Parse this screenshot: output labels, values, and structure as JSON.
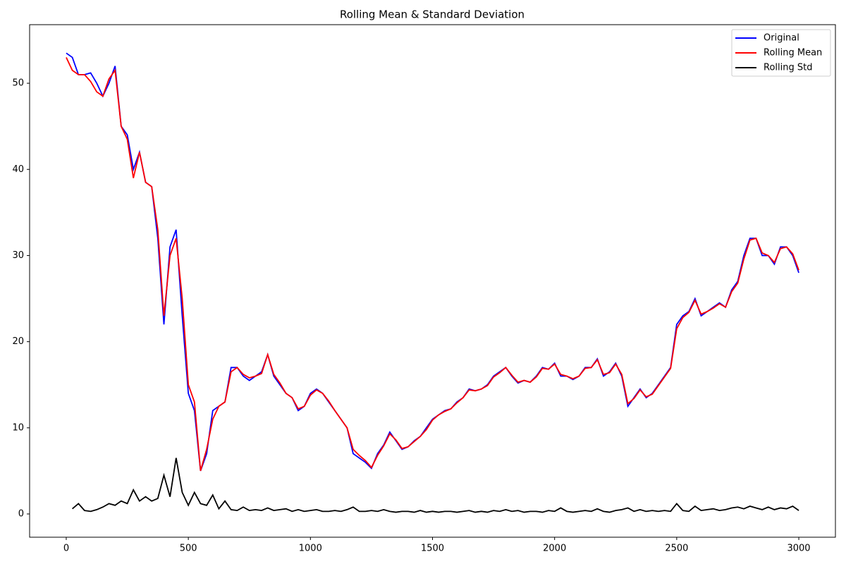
{
  "chart_data": {
    "type": "line",
    "title": "Rolling Mean & Standard Deviation",
    "x": [
      0,
      25,
      50,
      75,
      100,
      125,
      150,
      175,
      200,
      225,
      250,
      275,
      300,
      325,
      350,
      375,
      400,
      425,
      450,
      475,
      500,
      525,
      550,
      575,
      600,
      625,
      650,
      675,
      700,
      725,
      750,
      775,
      800,
      825,
      850,
      875,
      900,
      925,
      950,
      975,
      1000,
      1025,
      1050,
      1075,
      1100,
      1125,
      1150,
      1175,
      1200,
      1225,
      1250,
      1275,
      1300,
      1325,
      1350,
      1375,
      1400,
      1425,
      1450,
      1475,
      1500,
      1525,
      1550,
      1575,
      1600,
      1625,
      1650,
      1675,
      1700,
      1725,
      1750,
      1775,
      1800,
      1825,
      1850,
      1875,
      1900,
      1925,
      1950,
      1975,
      2000,
      2025,
      2050,
      2075,
      2100,
      2125,
      2150,
      2175,
      2200,
      2225,
      2250,
      2275,
      2300,
      2325,
      2350,
      2375,
      2400,
      2425,
      2450,
      2475,
      2500,
      2525,
      2550,
      2575,
      2600,
      2625,
      2650,
      2675,
      2700,
      2725,
      2750,
      2775,
      2800,
      2825,
      2850,
      2875,
      2900,
      2925,
      2950,
      2975,
      3000
    ],
    "series": [
      {
        "name": "Original",
        "color": "#0000ff",
        "values": [
          53.5,
          53,
          51,
          51,
          51.2,
          50,
          48.5,
          50,
          52,
          45,
          44,
          40,
          42,
          38.5,
          38,
          32,
          22,
          31,
          33,
          23,
          14,
          12,
          5,
          7,
          12,
          12.5,
          13,
          17,
          17,
          16,
          15.5,
          16,
          16.5,
          18.5,
          16,
          15,
          14,
          13.5,
          12,
          12.5,
          14,
          14.5,
          14,
          13,
          12,
          11,
          10,
          7,
          6.5,
          6,
          5.3,
          7,
          8,
          9.5,
          8.5,
          7.5,
          7.8,
          8.5,
          9,
          10,
          11,
          11.5,
          12,
          12.2,
          13,
          13.5,
          14.5,
          14.3,
          14.5,
          15,
          16,
          16.5,
          17,
          16,
          15.2,
          15.5,
          15.3,
          16,
          17,
          16.8,
          17.5,
          16,
          16,
          15.6,
          16,
          17,
          17,
          18,
          16,
          16.5,
          17.5,
          16,
          12.5,
          13.5,
          14.5,
          13.5,
          14,
          15,
          16,
          17,
          22,
          23,
          23.5,
          25,
          23,
          23.5,
          24,
          24.5,
          24,
          26,
          27,
          30,
          32,
          32,
          30,
          30,
          29,
          31,
          31,
          30,
          28
        ]
      },
      {
        "name": "Rolling Mean",
        "color": "#ff0000",
        "values": [
          53,
          51.5,
          51,
          51,
          50.2,
          49,
          48.5,
          50.5,
          51.5,
          45,
          43.5,
          39,
          42,
          38.5,
          38,
          33,
          23,
          30,
          32,
          25,
          15,
          13,
          5,
          7.5,
          11,
          12.5,
          13,
          16.5,
          17,
          16.2,
          15.8,
          16,
          16.3,
          18.5,
          16.2,
          15.2,
          14,
          13.5,
          12.2,
          12.5,
          13.8,
          14.4,
          14,
          13.1,
          12,
          11,
          10,
          7.5,
          6.8,
          6.2,
          5.4,
          6.8,
          7.9,
          9.3,
          8.6,
          7.6,
          7.8,
          8.4,
          9,
          9.8,
          10.9,
          11.5,
          11.9,
          12.2,
          12.9,
          13.5,
          14.4,
          14.3,
          14.5,
          14.9,
          15.9,
          16.4,
          17,
          16.1,
          15.3,
          15.5,
          15.3,
          15.9,
          16.9,
          16.8,
          17.4,
          16.2,
          16,
          15.7,
          16,
          16.9,
          17,
          17.9,
          16.2,
          16.4,
          17.4,
          16.2,
          12.8,
          13.4,
          14.4,
          13.6,
          13.9,
          14.9,
          15.9,
          16.9,
          21.5,
          22.8,
          23.4,
          24.8,
          23.2,
          23.5,
          23.9,
          24.4,
          24,
          25.8,
          26.8,
          29.6,
          31.8,
          32,
          30.3,
          30,
          29.2,
          30.8,
          31,
          30.2,
          28.3
        ]
      },
      {
        "name": "Rolling Std",
        "color": "#000000",
        "values": [
          null,
          0.6,
          1.2,
          0.4,
          0.3,
          0.5,
          0.8,
          1.2,
          1.0,
          1.5,
          1.2,
          2.8,
          1.5,
          2.0,
          1.5,
          1.8,
          4.5,
          2.0,
          6.5,
          2.5,
          1.0,
          2.5,
          1.2,
          1.0,
          2.2,
          0.6,
          1.5,
          0.5,
          0.4,
          0.8,
          0.4,
          0.5,
          0.4,
          0.7,
          0.4,
          0.5,
          0.6,
          0.3,
          0.5,
          0.3,
          0.4,
          0.5,
          0.3,
          0.3,
          0.4,
          0.3,
          0.5,
          0.8,
          0.3,
          0.3,
          0.4,
          0.3,
          0.5,
          0.3,
          0.2,
          0.3,
          0.3,
          0.2,
          0.4,
          0.2,
          0.3,
          0.2,
          0.3,
          0.3,
          0.2,
          0.3,
          0.4,
          0.2,
          0.3,
          0.2,
          0.4,
          0.3,
          0.5,
          0.3,
          0.4,
          0.2,
          0.3,
          0.3,
          0.2,
          0.4,
          0.3,
          0.7,
          0.3,
          0.2,
          0.3,
          0.4,
          0.3,
          0.6,
          0.3,
          0.2,
          0.4,
          0.5,
          0.7,
          0.3,
          0.5,
          0.3,
          0.4,
          0.3,
          0.4,
          0.3,
          1.2,
          0.4,
          0.3,
          0.9,
          0.4,
          0.5,
          0.6,
          0.4,
          0.5,
          0.7,
          0.8,
          0.6,
          0.9,
          0.7,
          0.5,
          0.8,
          0.5,
          0.7,
          0.6,
          0.9,
          0.4
        ]
      }
    ],
    "xlim": [
      -150,
      3150
    ],
    "ylim": [
      -2.7,
      56.8
    ],
    "xticks": [
      0,
      500,
      1000,
      1500,
      2000,
      2500,
      3000
    ],
    "yticks": [
      0,
      10,
      20,
      30,
      40,
      50
    ],
    "grid": false,
    "legend": "upper right"
  }
}
